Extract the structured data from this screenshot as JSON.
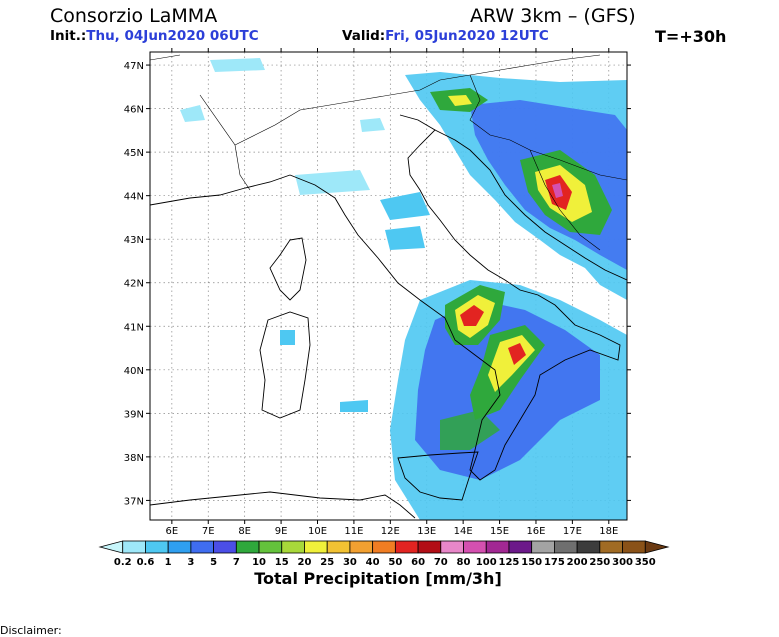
{
  "header": {
    "organization": "Consorzio LaMMA",
    "model": "ARW 3km – (GFS)",
    "init_label": "Init.:",
    "init_value": "Thu, 04Jun2020 06UTC",
    "valid_label": "Valid:",
    "valid_value": "Fri, 05Jun2020 12UTC",
    "timestep": "T=+30h"
  },
  "map": {
    "lat_labels": [
      "47N",
      "46N",
      "45N",
      "44N",
      "43N",
      "42N",
      "41N",
      "40N",
      "39N",
      "38N",
      "37N"
    ],
    "lon_labels": [
      "6E",
      "7E",
      "8E",
      "9E",
      "10E",
      "11E",
      "12E",
      "13E",
      "14E",
      "15E",
      "16E",
      "17E",
      "18E"
    ],
    "lat_values": [
      47,
      46,
      45,
      44,
      43,
      42,
      41,
      40,
      39,
      38,
      37
    ],
    "lon_values": [
      6,
      7,
      8,
      9,
      10,
      11,
      12,
      13,
      14,
      15,
      16,
      17,
      18
    ],
    "lon_range": [
      5.4,
      18.5
    ],
    "lat_range": [
      36.55,
      47.3
    ],
    "field": "precipitation"
  },
  "colorbar": {
    "title": "Total Precipitation [mm/3h]",
    "levels": [
      "0.2",
      "0.6",
      "1",
      "3",
      "5",
      "7",
      "10",
      "15",
      "20",
      "25",
      "30",
      "40",
      "50",
      "60",
      "70",
      "80",
      "100",
      "125",
      "150",
      "175",
      "200",
      "250",
      "300",
      "350"
    ],
    "colors": [
      "#c8f6fb",
      "#9ee8f9",
      "#4ec8f2",
      "#2f9ff0",
      "#3f6df0",
      "#4b4ee6",
      "#2fa83c",
      "#64c23c",
      "#a8d83a",
      "#f0f03a",
      "#f2c233",
      "#f2a031",
      "#f07d23",
      "#e22421",
      "#b20e16",
      "#e887c9",
      "#d450b0",
      "#a22893",
      "#6c198a",
      "#a3a3a3",
      "#6f6f6f",
      "#3c3c3c",
      "#a06b24",
      "#8a5218",
      "#6b3a12"
    ]
  },
  "footer": {
    "disclaimer": "Disclaimer:"
  }
}
